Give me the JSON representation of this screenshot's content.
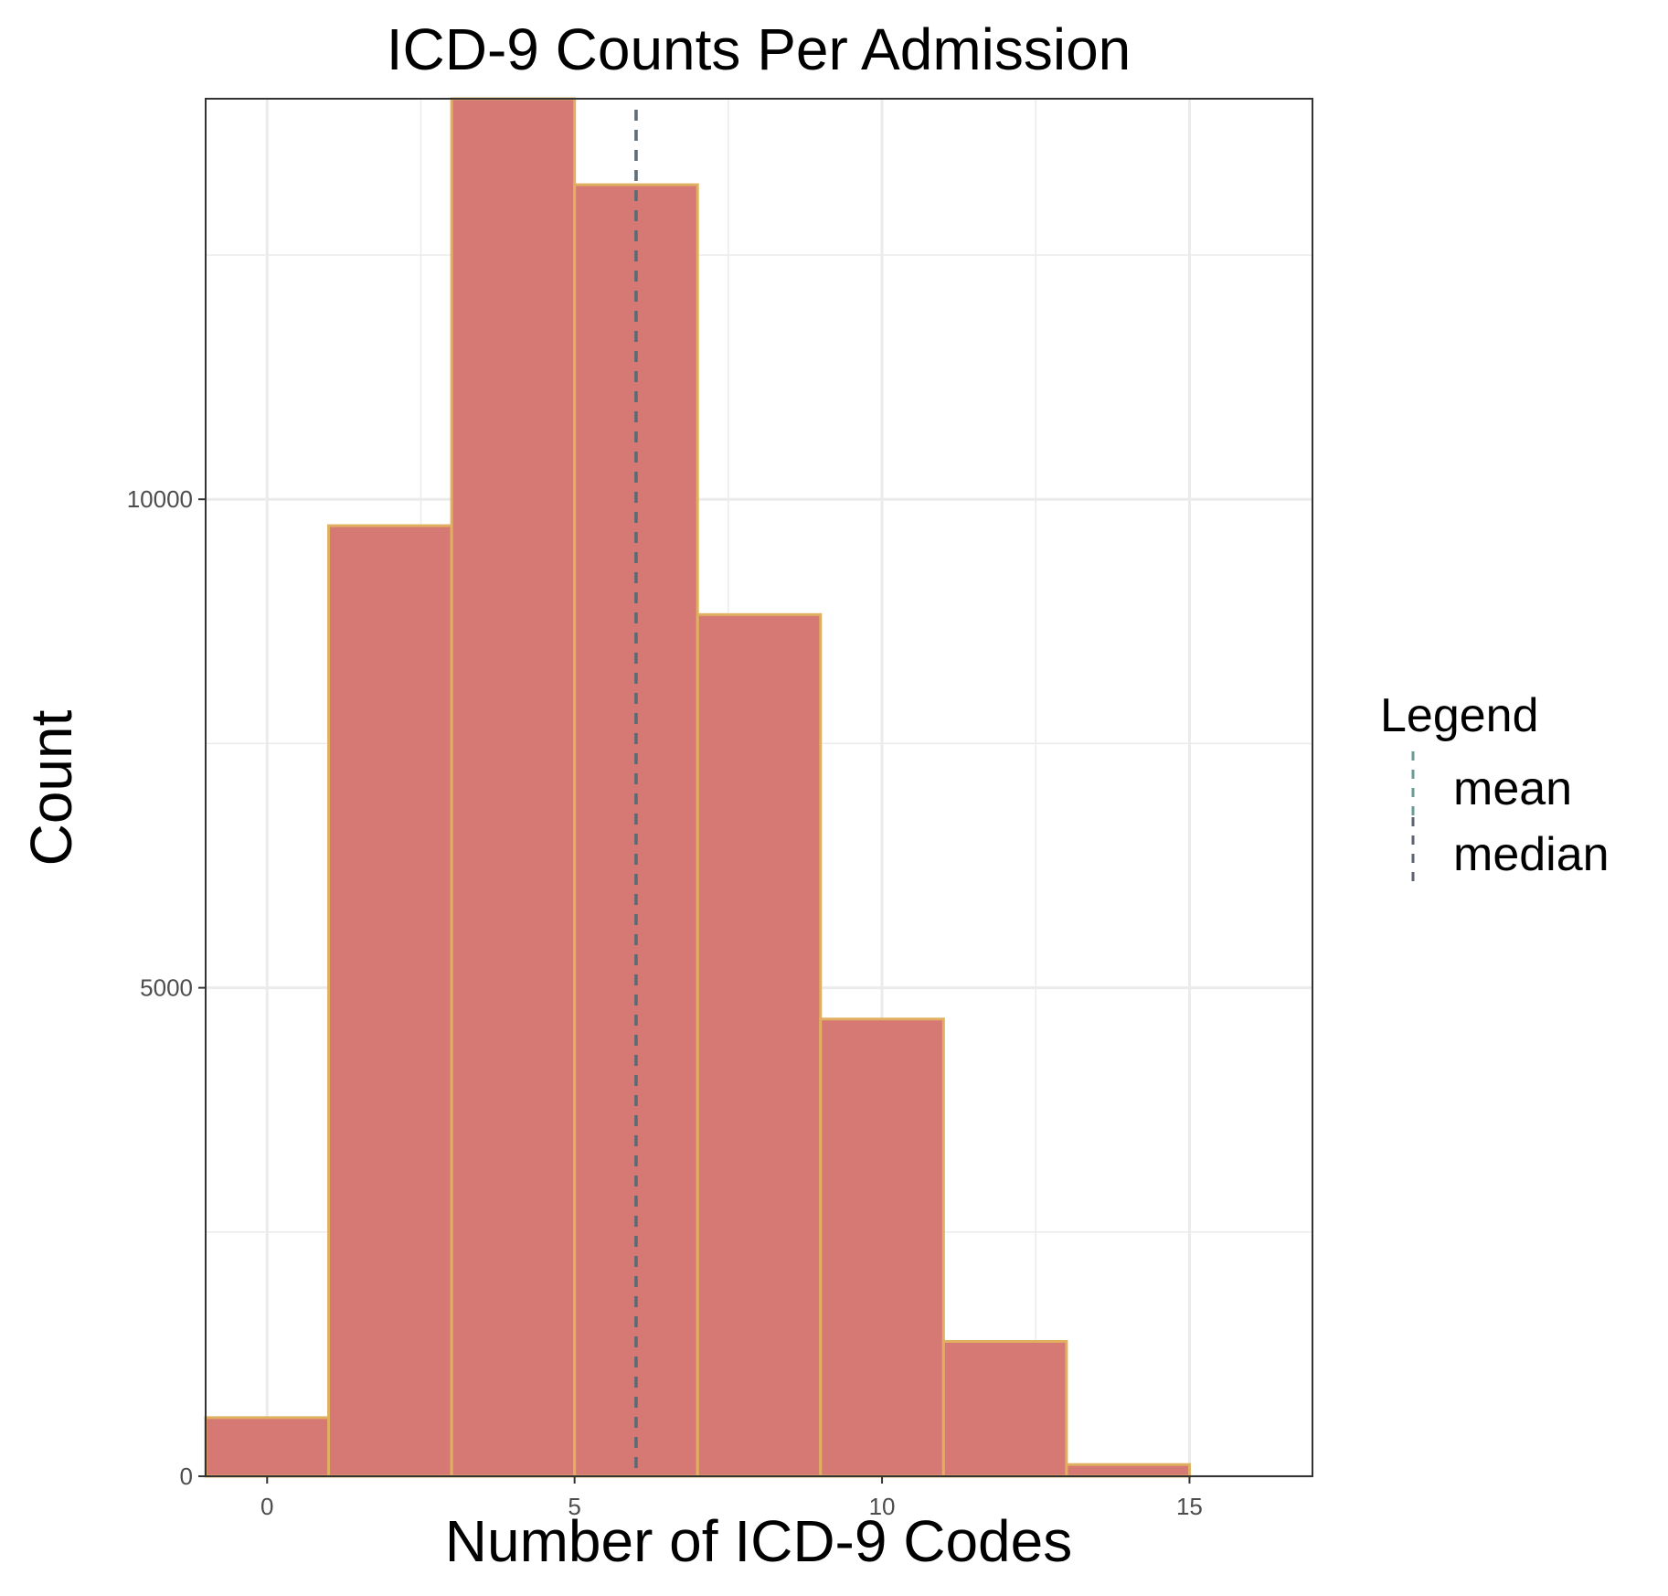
{
  "chart_data": {
    "type": "bar",
    "title": "ICD-9 Counts Per Admission",
    "xlabel": "Number of ICD-9 Codes",
    "ylabel": "Count",
    "xlim": [
      -1,
      17
    ],
    "ylim": [
      0,
      14100
    ],
    "x_ticks": [
      0,
      5,
      10,
      15
    ],
    "y_ticks": [
      0,
      5000,
      10000
    ],
    "x_tick_labels": [
      "0",
      "5",
      "10",
      "15"
    ],
    "y_tick_labels": [
      "0",
      "5000",
      "10000"
    ],
    "grid": true,
    "bins": [
      {
        "x0": -1,
        "x1": 1,
        "count": 600
      },
      {
        "x0": 1,
        "x1": 3,
        "count": 9730
      },
      {
        "x0": 3,
        "x1": 5,
        "count": 14100
      },
      {
        "x0": 5,
        "x1": 7,
        "count": 13220
      },
      {
        "x0": 7,
        "x1": 9,
        "count": 8820
      },
      {
        "x0": 9,
        "x1": 11,
        "count": 4680
      },
      {
        "x0": 11,
        "x1": 13,
        "count": 1380
      },
      {
        "x0": 13,
        "x1": 15,
        "count": 120
      }
    ],
    "reference_lines": [
      {
        "name": "mean",
        "x": 6.0,
        "color": "#6c9a94"
      },
      {
        "name": "median",
        "x": 6.0,
        "color": "#5b6270"
      }
    ],
    "legend": {
      "title": "Legend",
      "entries": [
        "mean",
        "median"
      ],
      "position": "right"
    },
    "colors": {
      "bar_fill": "#d67873",
      "bar_edge": "#e0b060",
      "grid": "#ebebeb",
      "panel_border": "#333333"
    }
  }
}
